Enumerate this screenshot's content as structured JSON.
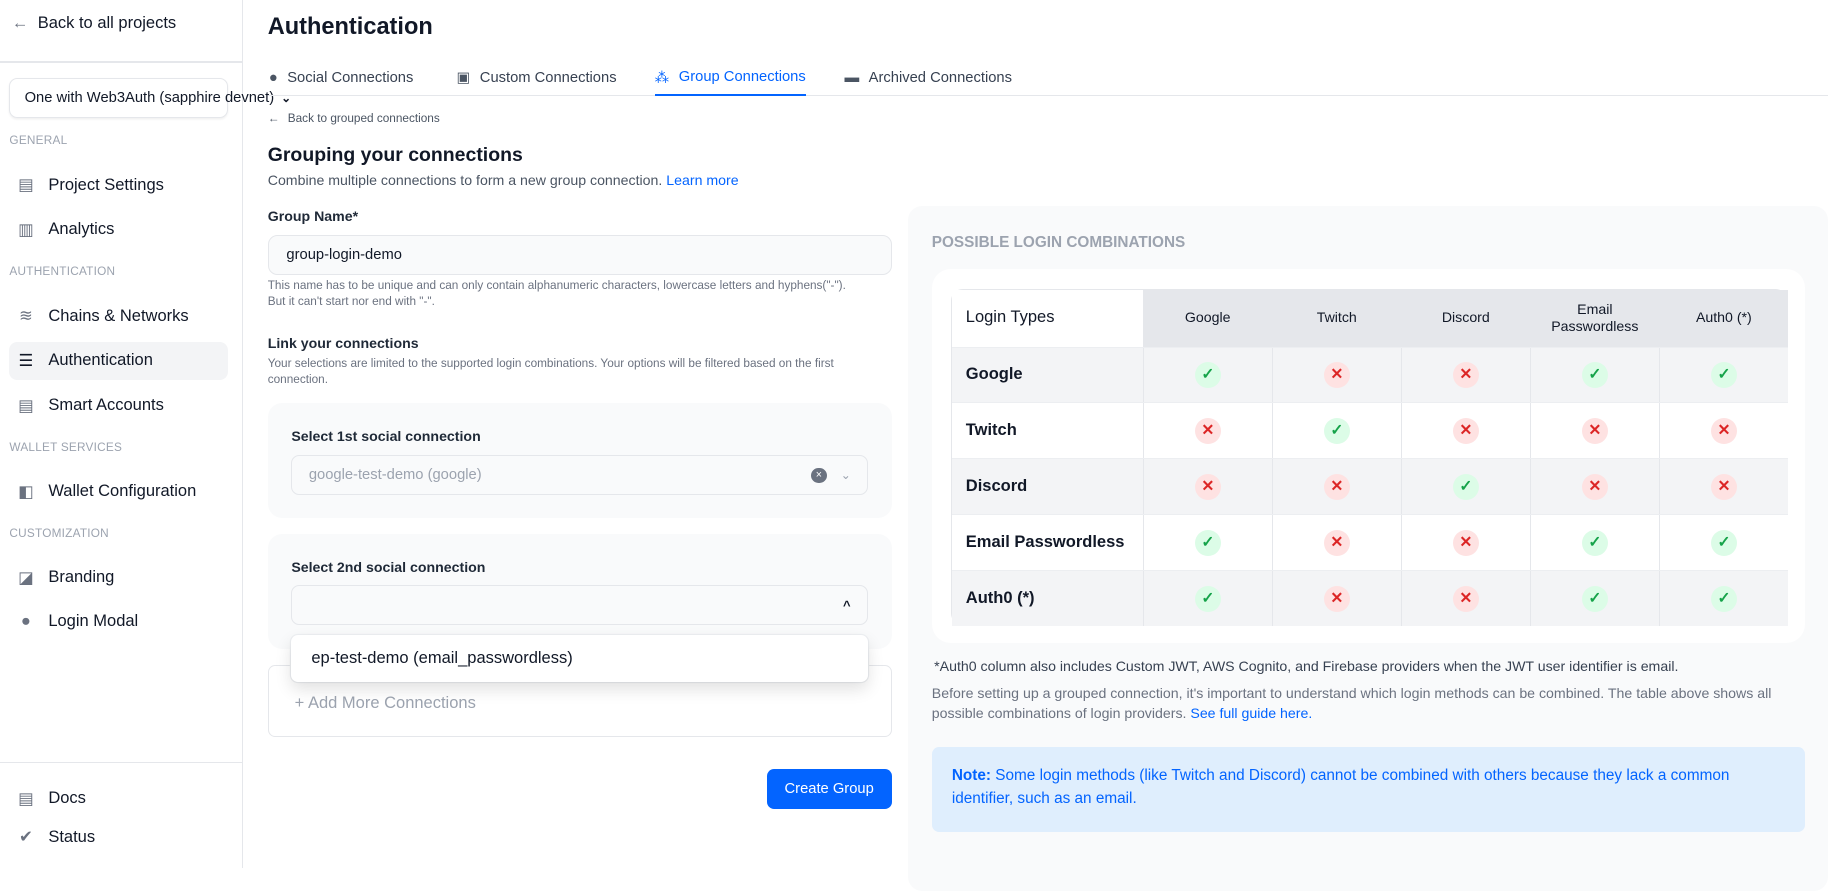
{
  "sidebar": {
    "back": "Back to all projects",
    "project": "One with Web3Auth (sapphire devnet)",
    "sections": {
      "general": "GENERAL",
      "authentication": "AUTHENTICATION",
      "wallet": "WALLET SERVICES",
      "customization": "CUSTOMIZATION"
    },
    "items": {
      "project_settings": "Project Settings",
      "analytics": "Analytics",
      "chains": "Chains & Networks",
      "authentication": "Authentication",
      "smart_accounts": "Smart Accounts",
      "wallet_config": "Wallet Configuration",
      "branding": "Branding",
      "login_modal": "Login Modal",
      "docs": "Docs",
      "status": "Status"
    }
  },
  "header": {
    "title": "Authentication"
  },
  "tabs": [
    {
      "label": "Social Connections"
    },
    {
      "label": "Custom Connections"
    },
    {
      "label": "Group Connections",
      "active": true
    },
    {
      "label": "Archived Connections"
    }
  ],
  "form": {
    "back": "Back to grouped connections",
    "heading": "Grouping your connections",
    "subtitle": "Combine multiple connections to form a new group connection.",
    "learn_more": "Learn more",
    "group_name_label": "Group Name*",
    "group_name_value": "group-login-demo",
    "group_name_help1": "This name has to be unique and can only contain alphanumeric characters, lowercase letters and hyphens(\"-\").",
    "group_name_help2": "But it can't start nor end with \"-\".",
    "link_label": "Link your connections",
    "link_help1": "Your selections are limited to the supported login combinations. Your options will be filtered based on the first",
    "link_help2": "connection.",
    "select1_label": "Select 1st social connection",
    "select1_value": "google-test-demo (google)",
    "select2_label": "Select 2nd social connection",
    "select2_value": "",
    "dropdown_option": "ep-test-demo (email_passwordless)",
    "add_more": "+ Add More Connections",
    "create": "Create Group"
  },
  "combinations": {
    "title": "POSSIBLE LOGIN COMBINATIONS",
    "corner": "Login Types",
    "columns": [
      "Google",
      "Twitch",
      "Discord",
      "Email Passwordless",
      "Auth0 (*)"
    ],
    "rows": [
      {
        "name": "Google",
        "values": [
          true,
          false,
          false,
          true,
          true
        ]
      },
      {
        "name": "Twitch",
        "values": [
          false,
          true,
          false,
          false,
          false
        ]
      },
      {
        "name": "Discord",
        "values": [
          false,
          false,
          true,
          false,
          false
        ]
      },
      {
        "name": "Email Passwordless",
        "values": [
          true,
          false,
          false,
          true,
          true
        ]
      },
      {
        "name": "Auth0 (*)",
        "values": [
          true,
          false,
          false,
          true,
          true
        ]
      }
    ],
    "footnote": "*Auth0 column also includes Custom JWT, AWS Cognito, and Firebase providers when the JWT user identifier is email.",
    "para": "Before setting up a grouped connection, it's important to understand which login methods can be combined. The table above shows all possible combinations of login providers.",
    "guide_link": "See full guide here.",
    "note_label": "Note:",
    "note_text": "Some login methods (like Twitch and Discord) cannot be combined with others because they lack a common identifier, such as an email."
  },
  "colors": {
    "accent": "#0364ff",
    "yes": "#16a34a",
    "no": "#dc2626"
  }
}
